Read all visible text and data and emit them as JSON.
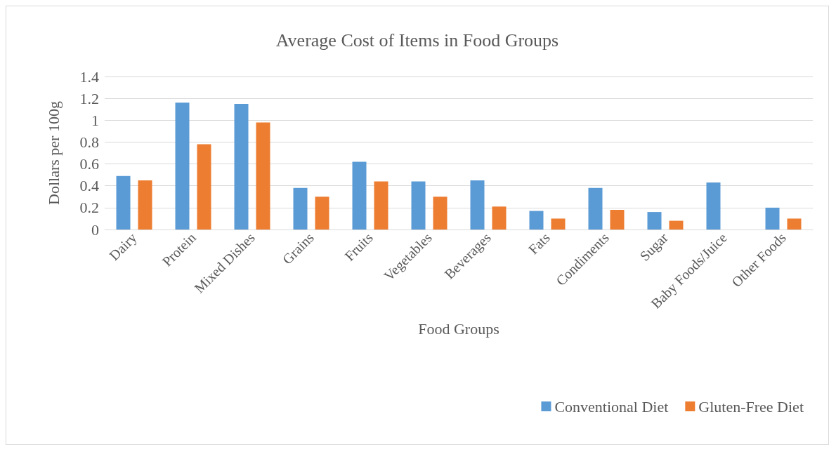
{
  "chart_data": {
    "type": "bar",
    "title": "Average Cost of Items in Food Groups",
    "xlabel": "Food Groups",
    "ylabel": "Dollars per 100g",
    "categories": [
      "Dairy",
      "Protein",
      "Mixed Dishes",
      "Grains",
      "Fruits",
      "Vegetables",
      "Beverages",
      "Fats",
      "Condiments",
      "Sugar",
      "Baby Foods/Juice",
      "Other Foods"
    ],
    "series": [
      {
        "name": "Conventional Diet",
        "color": "#5b9bd5",
        "values": [
          0.49,
          1.16,
          1.15,
          0.38,
          0.62,
          0.44,
          0.45,
          0.17,
          0.38,
          0.16,
          0.43,
          0.2
        ]
      },
      {
        "name": "Gluten-Free Diet",
        "color": "#ed7d31",
        "values": [
          0.45,
          0.78,
          0.98,
          0.3,
          0.44,
          0.3,
          0.21,
          0.1,
          0.18,
          0.08,
          null,
          0.1
        ]
      }
    ],
    "ylim": [
      0,
      1.4
    ],
    "yticks": [
      0,
      0.2,
      0.4,
      0.6,
      0.8,
      1,
      1.2,
      1.4
    ],
    "grid": "y",
    "legend": "bottom right"
  }
}
